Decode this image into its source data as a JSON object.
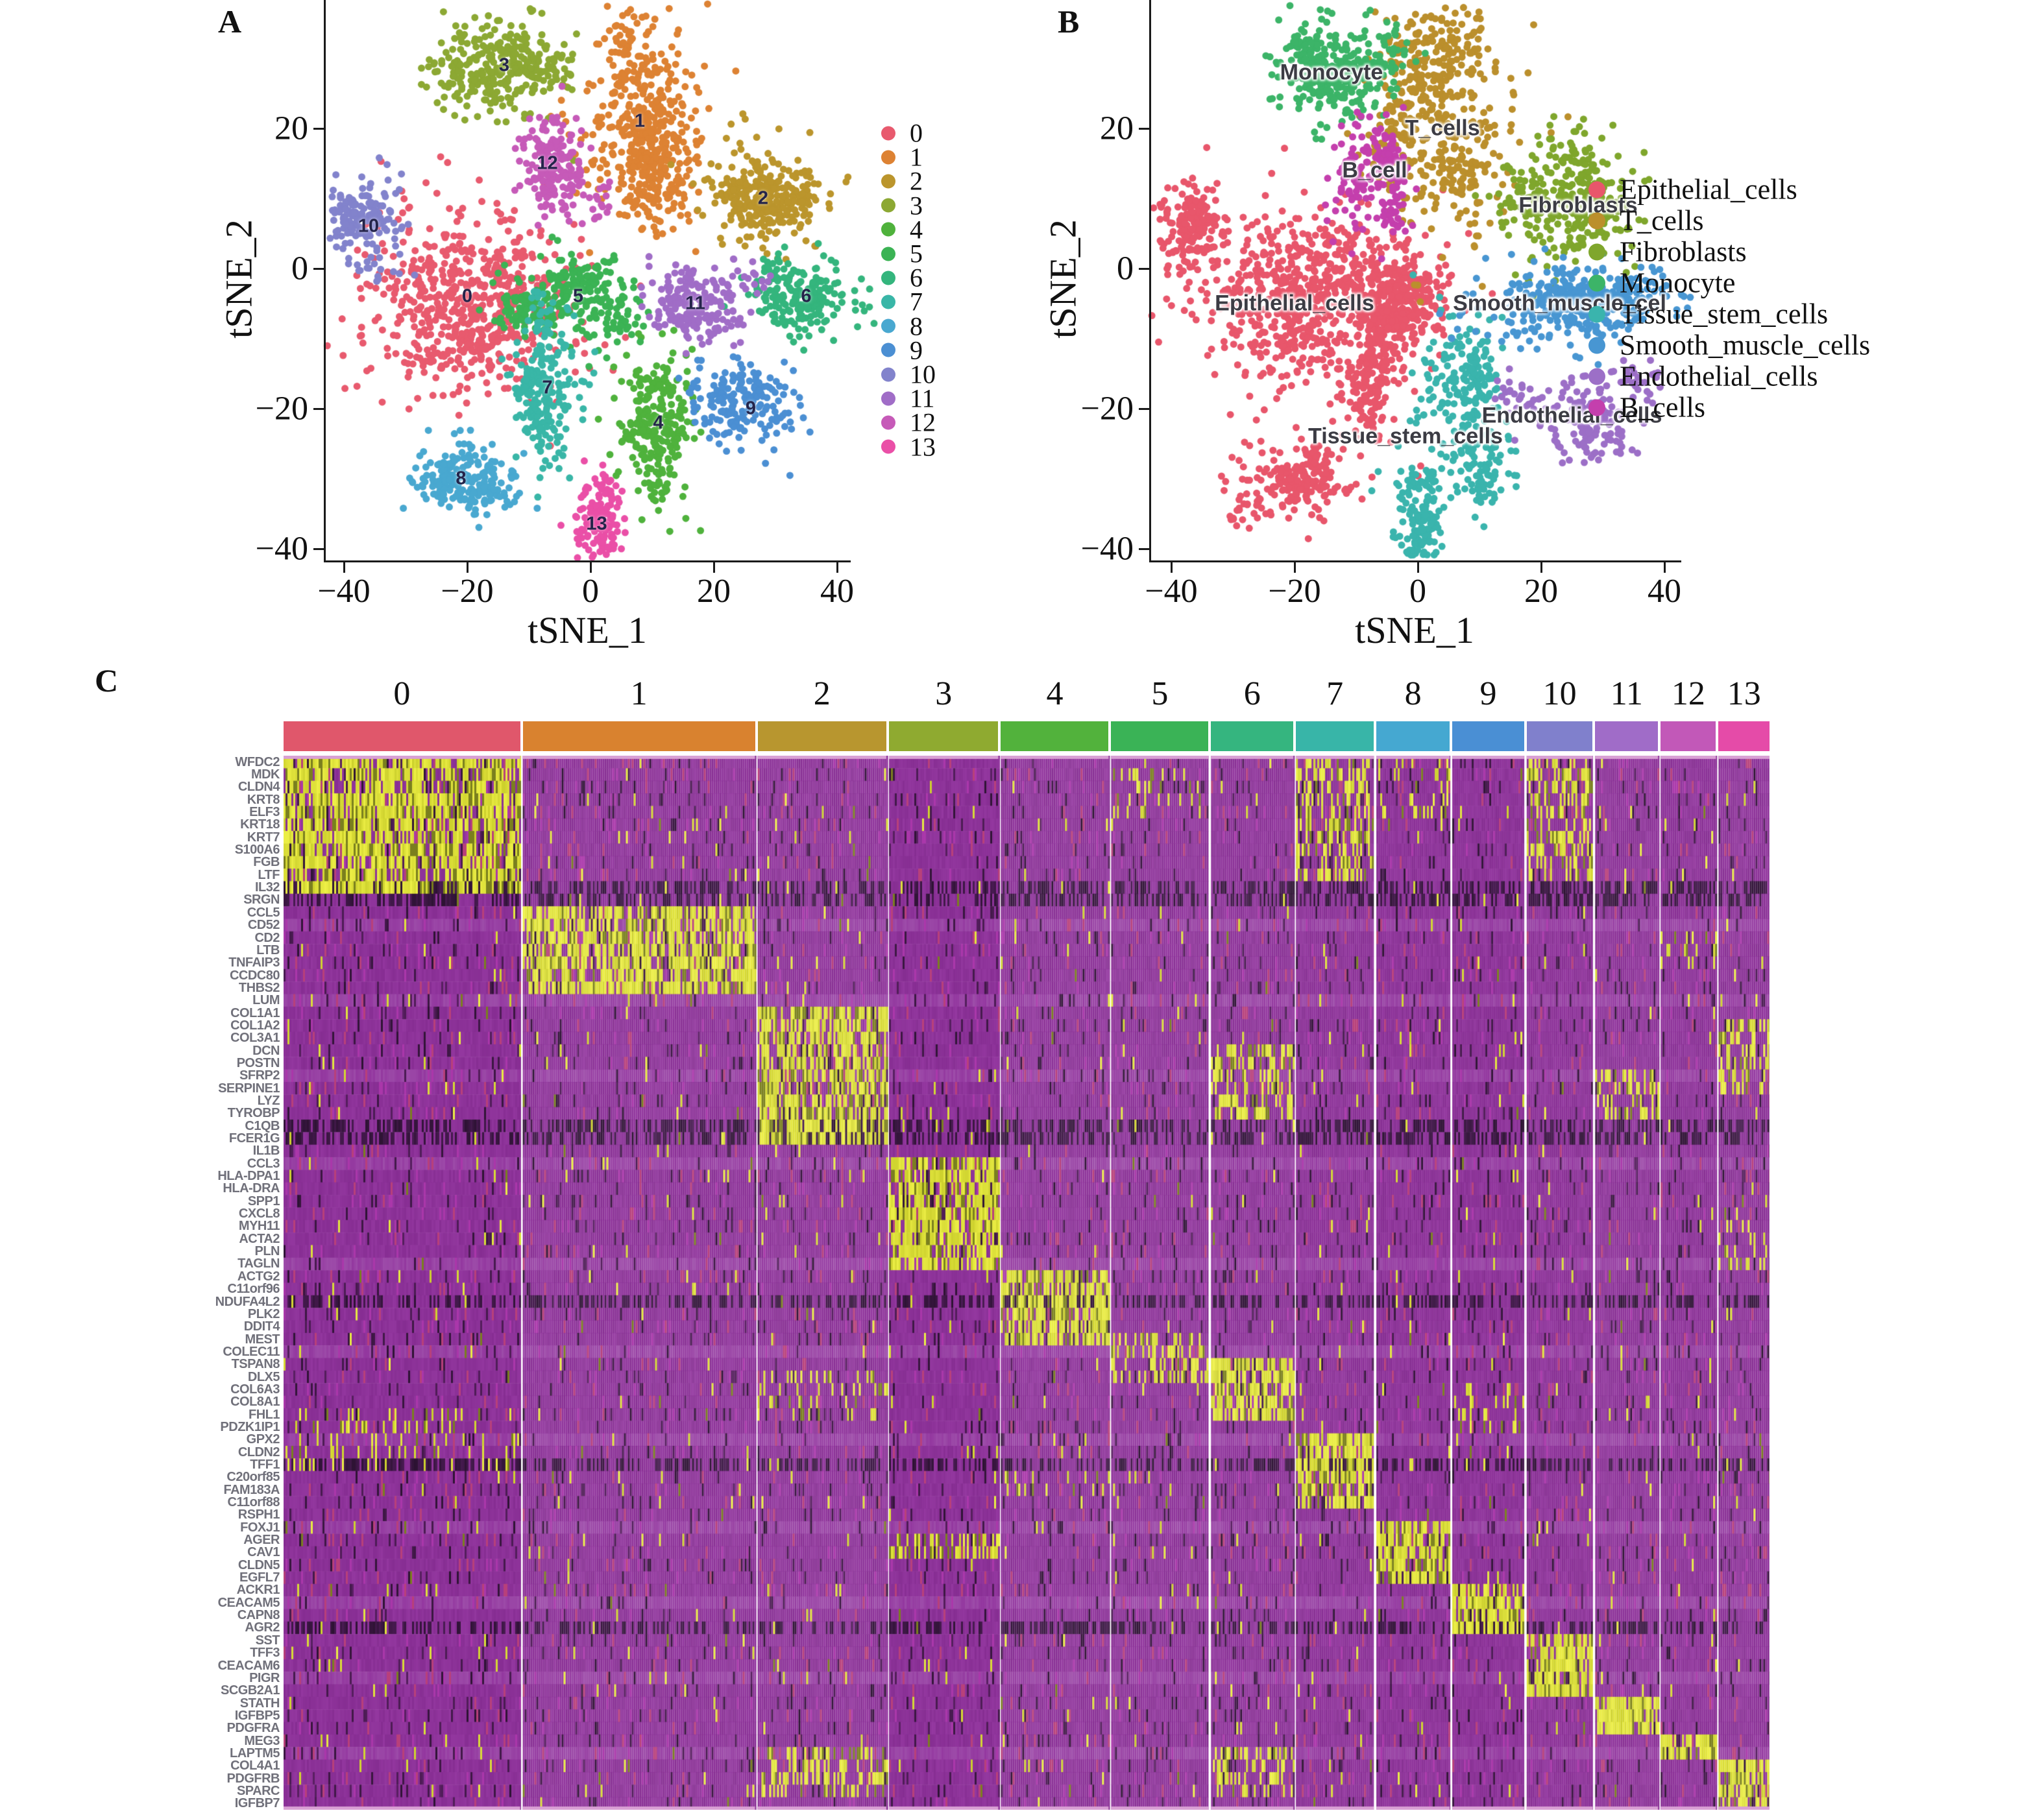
{
  "figure": {
    "panel_a_label": "A",
    "panel_b_label": "B",
    "panel_c_label": "C"
  },
  "chart_data": [
    {
      "type": "scatter",
      "panel": "A",
      "xlabel": "tSNE_1",
      "ylabel": "tSNE_2",
      "x_ticks": [
        -40,
        -20,
        0,
        20,
        40
      ],
      "y_ticks": [
        20,
        0,
        -20,
        -40
      ],
      "xlim": [
        -43,
        42
      ],
      "ylim": [
        -41,
        38
      ],
      "legend_position": "right",
      "grid": false,
      "series": [
        {
          "id": "0",
          "color": "#e85a6e",
          "cx": -20,
          "cy": -4,
          "sx": 9.5,
          "sy": 7,
          "n": 620
        },
        {
          "id": "1",
          "color": "#dd8233",
          "cx": 8,
          "cy": 21,
          "sx": 5.5,
          "sy": 8,
          "n": 500
        },
        {
          "id": "2",
          "color": "#bb952c",
          "cx": 28,
          "cy": 10,
          "sx": 5.5,
          "sy": 4.5,
          "n": 300
        },
        {
          "id": "3",
          "color": "#8ca833",
          "cx": -14,
          "cy": 29,
          "sx": 5.5,
          "sy": 4,
          "n": 320
        },
        {
          "id": "4",
          "color": "#4fb23c",
          "cx": 11,
          "cy": -22,
          "sx": 3.2,
          "sy": 6,
          "n": 260
        },
        {
          "id": "5",
          "color": "#3bb354",
          "cx": -2,
          "cy": -4,
          "sx": 5,
          "sy": 3.5,
          "n": 300
        },
        {
          "id": "6",
          "color": "#34b57d",
          "cx": 35,
          "cy": -4,
          "sx": 4.5,
          "sy": 3,
          "n": 210
        },
        {
          "id": "7",
          "color": "#39b6a7",
          "cx": -7,
          "cy": -17,
          "sx": 3,
          "sy": 5.5,
          "n": 230
        },
        {
          "id": "8",
          "color": "#49a8d0",
          "cx": -21,
          "cy": -30,
          "sx": 4.5,
          "sy": 2.8,
          "n": 210
        },
        {
          "id": "9",
          "color": "#4b8fd3",
          "cx": 26,
          "cy": -20,
          "sx": 4.5,
          "sy": 3.2,
          "n": 190
        },
        {
          "id": "10",
          "color": "#8283cc",
          "cx": -36,
          "cy": 6,
          "sx": 3.2,
          "sy": 3.8,
          "n": 170
        },
        {
          "id": "11",
          "color": "#a06dc7",
          "cx": 17,
          "cy": -5,
          "sx": 4.2,
          "sy": 2.8,
          "n": 210
        },
        {
          "id": "12",
          "color": "#c65ab8",
          "cx": -7,
          "cy": 15,
          "sx": 3.2,
          "sy": 4.2,
          "n": 190
        },
        {
          "id": "13",
          "color": "#ea4fa7",
          "cx": 1,
          "cy": -36.5,
          "sx": 2.2,
          "sy": 3.8,
          "n": 150
        }
      ]
    },
    {
      "type": "scatter",
      "panel": "B",
      "xlabel": "tSNE_1",
      "ylabel": "tSNE_2",
      "x_ticks": [
        -40,
        -20,
        0,
        20,
        40
      ],
      "y_ticks": [
        20,
        0,
        -20,
        -40
      ],
      "xlim": [
        -43,
        42
      ],
      "ylim": [
        -41,
        38
      ],
      "legend_position": "right",
      "grid": false,
      "series": [
        {
          "name": "Epithelial_cells",
          "color": "#e8566b",
          "blobs": [
            {
              "cx": -20,
              "cy": -4,
              "sx": 9.5,
              "sy": 7,
              "n": 620
            },
            {
              "cx": -36,
              "cy": 6,
              "sx": 3.2,
              "sy": 3.8,
              "n": 170
            },
            {
              "cx": -7,
              "cy": -16,
              "sx": 3,
              "sy": 5.2,
              "n": 220
            },
            {
              "cx": -21,
              "cy": -30,
              "sx": 4.5,
              "sy": 2.8,
              "n": 210
            },
            {
              "cx": -2,
              "cy": -4,
              "sx": 5,
              "sy": 3.5,
              "n": 300
            }
          ]
        },
        {
          "name": "T_cells",
          "color": "#bb8f2c",
          "blobs": [
            {
              "cx": 4,
              "cy": 21,
              "sx": 5.5,
              "sy": 8,
              "n": 500
            }
          ]
        },
        {
          "name": "Fibroblasts",
          "color": "#7fa62c",
          "blobs": [
            {
              "cx": 25,
              "cy": 9,
              "sx": 5.5,
              "sy": 4.8,
              "n": 330
            }
          ]
        },
        {
          "name": "Monocyte",
          "color": "#3cb468",
          "blobs": [
            {
              "cx": -14,
              "cy": 29,
              "sx": 5.5,
              "sy": 4,
              "n": 320
            }
          ]
        },
        {
          "name": "Tissue_stem_cells",
          "color": "#3ab4ad",
          "blobs": [
            {
              "cx": 7,
              "cy": -19,
              "sx": 3.4,
              "sy": 6,
              "n": 270
            },
            {
              "cx": 0,
              "cy": -34,
              "sx": 2.4,
              "sy": 4.5,
              "n": 160
            }
          ]
        },
        {
          "name": "Smooth_muscle_cells",
          "color": "#4896d2",
          "blobs": [
            {
              "cx": 24,
              "cy": -5,
              "sx": 8,
              "sy": 3.2,
              "n": 380
            }
          ]
        },
        {
          "name": "Endothelial_cells",
          "color": "#9c6fc7",
          "blobs": [
            {
              "cx": 27,
              "cy": -21,
              "sx": 4.8,
              "sy": 3.2,
              "n": 200
            }
          ]
        },
        {
          "name": "B_cells",
          "color": "#c43fad",
          "blobs": [
            {
              "cx": -7,
              "cy": 14,
              "sx": 3.4,
              "sy": 4.4,
              "n": 200
            }
          ]
        }
      ],
      "annotations": [
        {
          "text": "Monocyte",
          "x": -14,
          "y": 28
        },
        {
          "text": "T_cells",
          "x": 4,
          "y": 20
        },
        {
          "text": "B_cell",
          "x": -7,
          "y": 14
        },
        {
          "text": "Fibroblasts",
          "x": 26,
          "y": 9
        },
        {
          "text": "Epithelial_cells",
          "x": -20,
          "y": -5
        },
        {
          "text": "Smooth_muscle_cel",
          "x": 23,
          "y": -5
        },
        {
          "text": "Tissue_stem_cells",
          "x": -2,
          "y": -24
        },
        {
          "text": "Endothelial_cells",
          "x": 25,
          "y": -21
        }
      ]
    },
    {
      "type": "heatmap",
      "panel": "C",
      "columns": [
        {
          "label": "0",
          "width": 0.163,
          "color": "#e0576b"
        },
        {
          "label": "1",
          "width": 0.16,
          "color": "#d9822f"
        },
        {
          "label": "2",
          "width": 0.0887,
          "color": "#b8962f"
        },
        {
          "label": "3",
          "width": 0.0753,
          "color": "#8faa30"
        },
        {
          "label": "4",
          "width": 0.0742,
          "color": "#52b23c"
        },
        {
          "label": "5",
          "width": 0.067,
          "color": "#3ab356"
        },
        {
          "label": "6",
          "width": 0.0567,
          "color": "#35b57f"
        },
        {
          "label": "7",
          "width": 0.0536,
          "color": "#38b5a8"
        },
        {
          "label": "8",
          "width": 0.0505,
          "color": "#45a8d1"
        },
        {
          "label": "9",
          "width": 0.0495,
          "color": "#4a8fd4"
        },
        {
          "label": "10",
          "width": 0.0454,
          "color": "#8080cc"
        },
        {
          "label": "11",
          "width": 0.0433,
          "color": "#a06cc8"
        },
        {
          "label": "12",
          "width": 0.0381,
          "color": "#c258b8"
        },
        {
          "label": "13",
          "width": 0.0351,
          "color": "#e54ba8"
        }
      ],
      "rows": [
        "WFDC2",
        "MDK",
        "CLDN4",
        "KRT8",
        "ELF3",
        "KRT18",
        "KRT7",
        "S100A6",
        "FGB",
        "LTF",
        "IL32",
        "SRGN",
        "CCL5",
        "CD52",
        "CD2",
        "LTB",
        "TNFAIP3",
        "CCDC80",
        "THBS2",
        "LUM",
        "COL1A1",
        "COL1A2",
        "COL3A1",
        "DCN",
        "POSTN",
        "SFRP2",
        "SERPINE1",
        "LYZ",
        "TYROBP",
        "C1QB",
        "FCER1G",
        "IL1B",
        "CCL3",
        "HLA-DPA1",
        "HLA-DRA",
        "SPP1",
        "CXCL8",
        "MYH11",
        "ACTA2",
        "PLN",
        "TAGLN",
        "ACTG2",
        "C11orf96",
        "NDUFA4L2",
        "PLK2",
        "DDIT4",
        "MEST",
        "COLEC11",
        "TSPAN8",
        "DLX5",
        "COL6A3",
        "COL8A1",
        "FHL1",
        "PDZK1IP1",
        "GPX2",
        "CLDN2",
        "TFF1",
        "C20orf85",
        "FAM183A",
        "C11orf88",
        "RSPH1",
        "FOXJ1",
        "AGER",
        "CAV1",
        "CLDN5",
        "EGFL7",
        "ACKR1",
        "CEACAM5",
        "CAPN8",
        "AGR2",
        "SST",
        "TFF3",
        "CEACAM6",
        "PIGR",
        "SCGB2A1",
        "STATH",
        "IGFBP5",
        "PDGFRA",
        "MEG3",
        "LAPTM5",
        "COL4A1",
        "PDGFRB",
        "SPARC",
        "IGFBP7"
      ],
      "blocks": [
        {
          "col": 0,
          "from": 0,
          "to": 11,
          "level": "hot"
        },
        {
          "col": 0,
          "from": 52,
          "to": 57,
          "level": "sparse"
        },
        {
          "col": 1,
          "from": 12,
          "to": 19,
          "level": "hot"
        },
        {
          "col": 2,
          "from": 20,
          "to": 31,
          "level": "hot"
        },
        {
          "col": 2,
          "from": 49,
          "to": 53,
          "level": "sparse"
        },
        {
          "col": 2,
          "from": 79,
          "to": 83,
          "level": "med"
        },
        {
          "col": 3,
          "from": 32,
          "to": 41,
          "level": "hot"
        },
        {
          "col": 3,
          "from": 62,
          "to": 64,
          "level": "med"
        },
        {
          "col": 4,
          "from": 41,
          "to": 47,
          "level": "hot"
        },
        {
          "col": 4,
          "from": 57,
          "to": 59,
          "level": "sparse"
        },
        {
          "col": 5,
          "from": 46,
          "to": 50,
          "level": "med"
        },
        {
          "col": 5,
          "from": 1,
          "to": 5,
          "level": "sparse"
        },
        {
          "col": 6,
          "from": 48,
          "to": 53,
          "level": "hot"
        },
        {
          "col": 6,
          "from": 23,
          "to": 29,
          "level": "med"
        },
        {
          "col": 6,
          "from": 79,
          "to": 83,
          "level": "med"
        },
        {
          "col": 7,
          "from": 54,
          "to": 60,
          "level": "hot"
        },
        {
          "col": 7,
          "from": 0,
          "to": 10,
          "level": "med"
        },
        {
          "col": 8,
          "from": 61,
          "to": 66,
          "level": "hot"
        },
        {
          "col": 8,
          "from": 0,
          "to": 5,
          "level": "sparse"
        },
        {
          "col": 9,
          "from": 66,
          "to": 70,
          "level": "hot"
        },
        {
          "col": 9,
          "from": 50,
          "to": 54,
          "level": "sparse"
        },
        {
          "col": 10,
          "from": 70,
          "to": 75,
          "level": "hot"
        },
        {
          "col": 10,
          "from": 0,
          "to": 10,
          "level": "med"
        },
        {
          "col": 11,
          "from": 75,
          "to": 78,
          "level": "hot"
        },
        {
          "col": 11,
          "from": 25,
          "to": 29,
          "level": "med"
        },
        {
          "col": 12,
          "from": 78,
          "to": 80,
          "level": "hot"
        },
        {
          "col": 12,
          "from": 14,
          "to": 17,
          "level": "sparse"
        },
        {
          "col": 13,
          "from": 80,
          "to": 84,
          "level": "hot"
        },
        {
          "col": 13,
          "from": 21,
          "to": 27,
          "level": "med"
        },
        {
          "col": 13,
          "from": 36,
          "to": 41,
          "level": "sparse"
        }
      ],
      "dark_rows": [
        10,
        11,
        29,
        30,
        43,
        56,
        69
      ],
      "light_rows": [
        13,
        19,
        25,
        32,
        40,
        47,
        54,
        61,
        67,
        73,
        79
      ],
      "colors": {
        "base": "#862d92",
        "base2": "#93379f",
        "light": "#9d4ca9",
        "dark": "#2c1232",
        "hot1": "#ccd02c",
        "hot2": "#eef046",
        "olive": "#7a7f1e",
        "deep": "#5c2168",
        "magenta": "#aa37aa",
        "red_speck": "#b8407a",
        "strip": "#d9a0d4"
      }
    }
  ],
  "legend_b": [
    {
      "label": "Epithelial_cells",
      "color": "#e8566b"
    },
    {
      "label": "T_cells",
      "color": "#bb8f2c"
    },
    {
      "label": "Fibroblasts",
      "color": "#7fa62c"
    },
    {
      "label": "Monocyte",
      "color": "#3cb468"
    },
    {
      "label": "Tissue_stem_cells",
      "color": "#3ab4ad"
    },
    {
      "label": "Smooth_muscle_cells",
      "color": "#4896d2"
    },
    {
      "label": "Endothelial_cells",
      "color": "#9c6fc7"
    },
    {
      "label": "B_cells",
      "color": "#c43fad"
    }
  ]
}
